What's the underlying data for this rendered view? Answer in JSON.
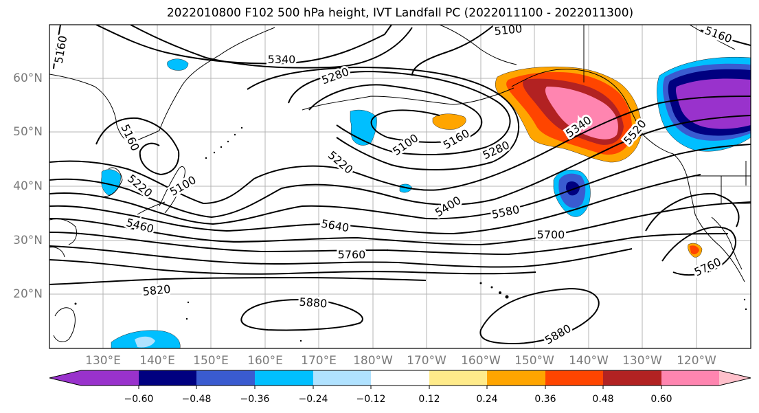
{
  "title": "2022010800 F102 500 hPa height, IVT Landfall PC (2022011100 - 2022011300)",
  "lat_labels": [
    "60°N",
    "50°N",
    "40°N",
    "30°N",
    "20°N"
  ],
  "lon_labels": [
    "130°E",
    "140°E",
    "150°E",
    "160°E",
    "170°E",
    "180°W",
    "170°W",
    "160°W",
    "150°W",
    "140°W",
    "130°W",
    "120°W"
  ],
  "contour_labels": [
    "5160",
    "5340",
    "5280",
    "5100",
    "5160",
    "5160",
    "5100",
    "5160",
    "5220",
    "5220",
    "5100",
    "5460",
    "5400",
    "5580",
    "5640",
    "5700",
    "5760",
    "5820",
    "5880",
    "5880",
    "5340",
    "5280",
    "5520",
    "5760"
  ],
  "colorbar": {
    "tick_labels": [
      "−0.60",
      "−0.48",
      "−0.36",
      "−0.24",
      "−0.12",
      "0.12",
      "0.24",
      "0.36",
      "0.48",
      "0.60"
    ],
    "colors": [
      "#9932cc",
      "#000080",
      "#3a5bd0",
      "#00bfff",
      "#b0e2ff",
      "#ffffff",
      "#ffeb8a",
      "#ffa500",
      "#ff4500",
      "#b22222",
      "#ff85b0",
      "#ffc0cb"
    ]
  }
}
